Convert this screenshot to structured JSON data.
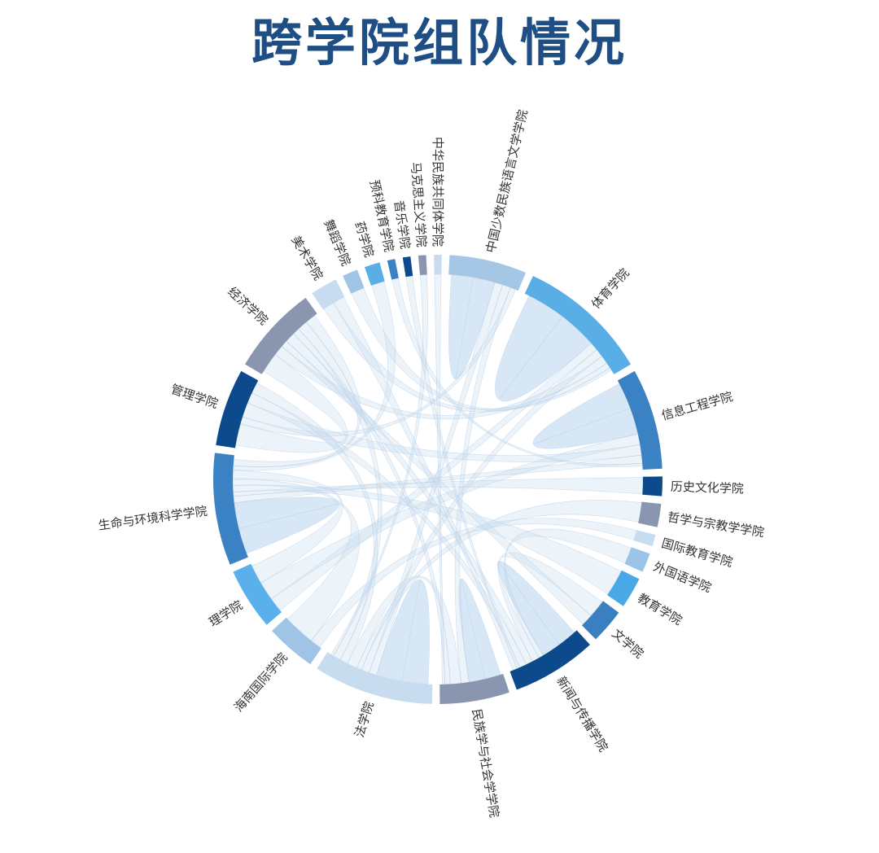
{
  "chart_data": {
    "type": "chord",
    "title": "跨学院组队情况",
    "nodes": [
      {
        "name": "中国少数民族语言文学学院",
        "value": 20,
        "color": "#a6c6e6"
      },
      {
        "name": "体育学院",
        "value": 34,
        "color": "#5aaee6"
      },
      {
        "name": "信息工程学院",
        "value": 26,
        "color": "#3a82c4"
      },
      {
        "name": "历史文化学院",
        "value": 5,
        "color": "#0d4a8c"
      },
      {
        "name": "哲学与宗教学学院",
        "value": 6,
        "color": "#8a96b0"
      },
      {
        "name": "国际教育学院",
        "value": 3,
        "color": "#c8dcf0"
      },
      {
        "name": "外国语学院",
        "value": 5,
        "color": "#9cc4e8"
      },
      {
        "name": "教育学院",
        "value": 8,
        "color": "#4aa8e6"
      },
      {
        "name": "文学院",
        "value": 9,
        "color": "#3a7fc0"
      },
      {
        "name": "新闻与传播学院",
        "value": 22,
        "color": "#0d4a8c"
      },
      {
        "name": "民族学与社会学学院",
        "value": 18,
        "color": "#8a96b0"
      },
      {
        "name": "法学院",
        "value": 31,
        "color": "#c8dcf0"
      },
      {
        "name": "海南国际学院",
        "value": 13,
        "color": "#a0c4e6"
      },
      {
        "name": "理学院",
        "value": 16,
        "color": "#5ab0ea"
      },
      {
        "name": "生命与环境科学学院",
        "value": 29,
        "color": "#3a82c4"
      },
      {
        "name": "管理学院",
        "value": 20,
        "color": "#0d4a8c"
      },
      {
        "name": "经济学院",
        "value": 23,
        "color": "#8a96b0"
      },
      {
        "name": "美术学院",
        "value": 7,
        "color": "#c8dcf0"
      },
      {
        "name": "舞蹈学院",
        "value": 4,
        "color": "#a0c4e6"
      },
      {
        "name": "药学院",
        "value": 4,
        "color": "#5aaee6"
      },
      {
        "name": "预科教育学院",
        "value": 2,
        "color": "#3a82c4"
      },
      {
        "name": "音乐学院",
        "value": 2,
        "color": "#0d4a8c"
      },
      {
        "name": "马克思主义学院",
        "value": 2,
        "color": "#8a96b0"
      },
      {
        "name": "中华民族共同体学院",
        "value": 2,
        "color": "#c8dcf0"
      }
    ],
    "links": [
      {
        "source": "中国少数民族语言文学学院",
        "target": "中国少数民族语言文学学院",
        "value": 8
      },
      {
        "source": "体育学院",
        "target": "体育学院",
        "value": 14
      },
      {
        "source": "信息工程学院",
        "target": "信息工程学院",
        "value": 10
      },
      {
        "source": "生命与环境科学学院",
        "target": "生命与环境科学学院",
        "value": 12
      },
      {
        "source": "法学院",
        "target": "法学院",
        "value": 10
      },
      {
        "source": "民族学与社会学学院",
        "target": "民族学与社会学学院",
        "value": 6
      },
      {
        "source": "新闻与传播学院",
        "target": "新闻与传播学院",
        "value": 8
      },
      {
        "source": "管理学院",
        "target": "经济学院",
        "value": 6
      },
      {
        "source": "中国少数民族语言文学学院",
        "target": "法学院",
        "value": 3
      },
      {
        "source": "中国少数民族语言文学学院",
        "target": "民族学与社会学学院",
        "value": 3
      },
      {
        "source": "中国少数民族语言文学学院",
        "target": "管理学院",
        "value": 2
      },
      {
        "source": "体育学院",
        "target": "理学院",
        "value": 3
      },
      {
        "source": "体育学院",
        "target": "法学院",
        "value": 3
      },
      {
        "source": "体育学院",
        "target": "经济学院",
        "value": 3
      },
      {
        "source": "信息工程学院",
        "target": "理学院",
        "value": 4
      },
      {
        "source": "信息工程学院",
        "target": "管理学院",
        "value": 4
      },
      {
        "source": "信息工程学院",
        "target": "生命与环境科学学院",
        "value": 3
      },
      {
        "source": "历史文化学院",
        "target": "生命与环境科学学院",
        "value": 2
      },
      {
        "source": "哲学与宗教学学院",
        "target": "法学院",
        "value": 2
      },
      {
        "source": "国际教育学院",
        "target": "海南国际学院",
        "value": 1
      },
      {
        "source": "外国语学院",
        "target": "新闻与传播学院",
        "value": 2
      },
      {
        "source": "教育学院",
        "target": "生命与环境科学学院",
        "value": 3
      },
      {
        "source": "文学院",
        "target": "新闻与传播学院",
        "value": 3
      },
      {
        "source": "文学院",
        "target": "经济学院",
        "value": 2
      },
      {
        "source": "新闻与传播学院",
        "target": "经济学院",
        "value": 3
      },
      {
        "source": "新闻与传播学院",
        "target": "管理学院",
        "value": 3
      },
      {
        "source": "民族学与社会学学院",
        "target": "法学院",
        "value": 4
      },
      {
        "source": "民族学与社会学学院",
        "target": "经济学院",
        "value": 2
      },
      {
        "source": "法学院",
        "target": "管理学院",
        "value": 3
      },
      {
        "source": "法学院",
        "target": "经济学院",
        "value": 3
      },
      {
        "source": "海南国际学院",
        "target": "生命与环境科学学院",
        "value": 3
      },
      {
        "source": "理学院",
        "target": "生命与环境科学学院",
        "value": 4
      },
      {
        "source": "美术学院",
        "target": "体育学院",
        "value": 2
      },
      {
        "source": "舞蹈学院",
        "target": "体育学院",
        "value": 1
      },
      {
        "source": "药学院",
        "target": "生命与环境科学学院",
        "value": 2
      },
      {
        "source": "预科教育学院",
        "target": "信息工程学院",
        "value": 1
      },
      {
        "source": "音乐学院",
        "target": "新闻与传播学院",
        "value": 1
      },
      {
        "source": "马克思主义学院",
        "target": "法学院",
        "value": 1
      },
      {
        "source": "中华民族共同体学院",
        "target": "民族学与社会学学院",
        "value": 1
      },
      {
        "source": "经济学院",
        "target": "生命与环境科学学院",
        "value": 3
      },
      {
        "source": "美术学院",
        "target": "新闻与传播学院",
        "value": 2
      }
    ]
  }
}
